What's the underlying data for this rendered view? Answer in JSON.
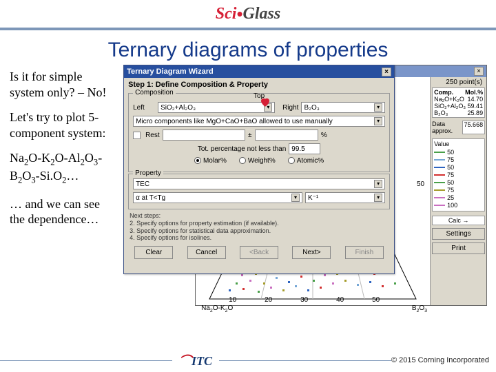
{
  "logo": {
    "part1": "Sci",
    "part2": "Glass"
  },
  "slide_title": "Ternary diagrams of properties",
  "left_paragraphs": {
    "p1": "Is it for simple system only? – No!",
    "p2": "Let's try to plot 5-component system:",
    "p3_html": "Na₂O-K₂O-Al₂O₃-B₂O₃-Si.O₂…",
    "p4": "… and we can see the dependence…"
  },
  "wizard": {
    "title": "Ternary Diagram Wizard",
    "step_label": "Step 1: Define Composition & Property",
    "composition_group": "Composition",
    "top_label": "Top",
    "left_label": "Left",
    "right_label": "Right",
    "left_value": "SiO₂+Al₂O₃",
    "right_value": "B₂O₃",
    "micro_label": "Micro components like MgO+CaO+BaO allowed to use manually",
    "rest_label": "Rest",
    "plusminus": "±",
    "percent": "%",
    "tot_perc_label": "Tot. percentage not less than",
    "tot_perc_value": "99.5",
    "radio_molar": "Molar%",
    "radio_weight": "Weight%",
    "radio_atomic": "Atomic%",
    "property_group": "Property",
    "property_value": "TEC",
    "property_row2_left": "α at T<Tg",
    "property_row2_right": "K⁻¹",
    "next_steps_label": "Next steps:",
    "next_steps_2": "2. Specify options for property estimation (if available).",
    "next_steps_3": "3. Specify options for statistical data approximation.",
    "next_steps_4": "4. Specify options for isolines.",
    "btn_clear": "Clear",
    "btn_cancel": "Cancel",
    "btn_back": "<Back",
    "btn_next": "Next>",
    "btn_finish": "Finish"
  },
  "tri_window": {
    "points_label": "250 point(s)",
    "comp_col1": "Comp.",
    "comp_col2": "Mol.%",
    "rows": [
      {
        "name": "Na₂O+K₂O",
        "val": "14.70"
      },
      {
        "name": "SiO₂+Al₂O₃",
        "val": "59.41"
      },
      {
        "name": "B₂O₃",
        "val": "25.89"
      }
    ],
    "data_approx_label": "Data approx.",
    "data_approx_value": "75.668",
    "value_label": "Value",
    "value_legend": [
      {
        "color": "#4aa04a",
        "v": "50"
      },
      {
        "color": "#76a7d6",
        "v": "75"
      },
      {
        "color": "#2d63c0",
        "v": "50"
      },
      {
        "color": "#d23030",
        "v": "75"
      },
      {
        "color": "#4aa04a",
        "v": "50"
      },
      {
        "color": "#a59c2b",
        "v": "75"
      },
      {
        "color": "#c96fc0",
        "v": "25"
      },
      {
        "color": "#c96fc0",
        "v": "100"
      }
    ],
    "calc_label": "Calc →",
    "btn_settings": "Settings",
    "btn_print": "Print",
    "axis_left": "Na₂O-K₂O",
    "axis_right": "B₂O₃",
    "axis_ticks": [
      "10",
      "20",
      "30",
      "40",
      "50"
    ],
    "axis_tick_right": "50",
    "scatter_colors": [
      "#2d63c0",
      "#d23030",
      "#4aa04a",
      "#c96fc0",
      "#a59c2b",
      "#76a7d6"
    ],
    "scatter_points": [
      [
        50,
        310
      ],
      [
        70,
        308
      ],
      [
        92,
        312
      ],
      [
        110,
        306
      ],
      [
        128,
        310
      ],
      [
        146,
        304
      ],
      [
        164,
        310
      ],
      [
        182,
        306
      ],
      [
        60,
        300
      ],
      [
        80,
        296
      ],
      [
        100,
        300
      ],
      [
        118,
        292
      ],
      [
        136,
        298
      ],
      [
        154,
        290
      ],
      [
        172,
        296
      ],
      [
        68,
        288
      ],
      [
        88,
        286
      ],
      [
        106,
        284
      ],
      [
        124,
        282
      ],
      [
        142,
        280
      ],
      [
        160,
        282
      ],
      [
        76,
        276
      ],
      [
        94,
        274
      ],
      [
        112,
        270
      ],
      [
        130,
        272
      ],
      [
        148,
        268
      ],
      [
        84,
        264
      ],
      [
        102,
        262
      ],
      [
        120,
        258
      ],
      [
        138,
        260
      ],
      [
        92,
        252
      ],
      [
        110,
        248
      ],
      [
        128,
        250
      ],
      [
        200,
        300
      ],
      [
        218,
        296
      ],
      [
        236,
        302
      ],
      [
        254,
        298
      ],
      [
        272,
        304
      ],
      [
        290,
        300
      ],
      [
        188,
        288
      ],
      [
        206,
        286
      ],
      [
        224,
        284
      ],
      [
        242,
        282
      ],
      [
        260,
        286
      ],
      [
        176,
        280
      ],
      [
        194,
        276
      ],
      [
        212,
        278
      ],
      [
        230,
        274
      ]
    ]
  },
  "footer": {
    "logo_text": "ITC",
    "copyright": "© 2015 Corning Incorporated"
  },
  "heart_color": "#d61f35"
}
